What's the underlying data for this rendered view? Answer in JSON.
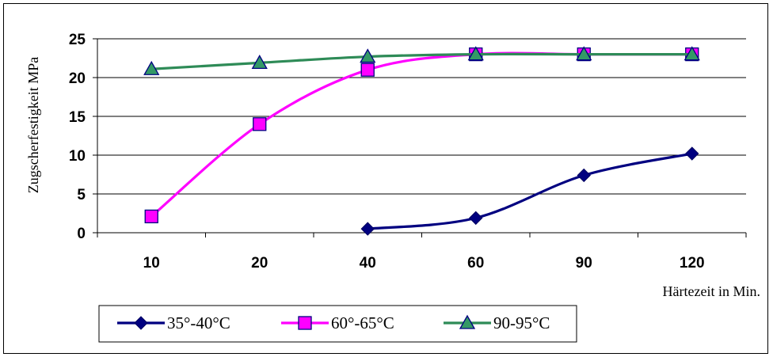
{
  "chart_data": {
    "type": "line",
    "categories": [
      "10",
      "20",
      "40",
      "60",
      "90",
      "120"
    ],
    "ylabel": "Zugscherfestigkeit MPa",
    "xlabel": "Härtezeit in Min.",
    "ylim": [
      0,
      25
    ],
    "yticks": [
      0,
      5,
      10,
      15,
      20,
      25
    ],
    "grid": true,
    "legend_position": "bottom",
    "smooth": true,
    "series": [
      {
        "name": "35°-40°C",
        "marker": "diamond",
        "color": "#000080",
        "markerFill": "#000080",
        "values": [
          null,
          null,
          0.5,
          1.9,
          7.4,
          10.2
        ]
      },
      {
        "name": "60°-65°C",
        "marker": "square",
        "color": "#ff00ff",
        "markerFill": "#ff00ff",
        "values": [
          2.1,
          14.0,
          21.0,
          23.0,
          23.0,
          23.0
        ]
      },
      {
        "name": "90-95°C",
        "marker": "triangle",
        "color": "#2e8b57",
        "markerFill": "#339966",
        "values": [
          21.1,
          21.9,
          22.7,
          23.0,
          23.0,
          23.0
        ]
      }
    ]
  }
}
